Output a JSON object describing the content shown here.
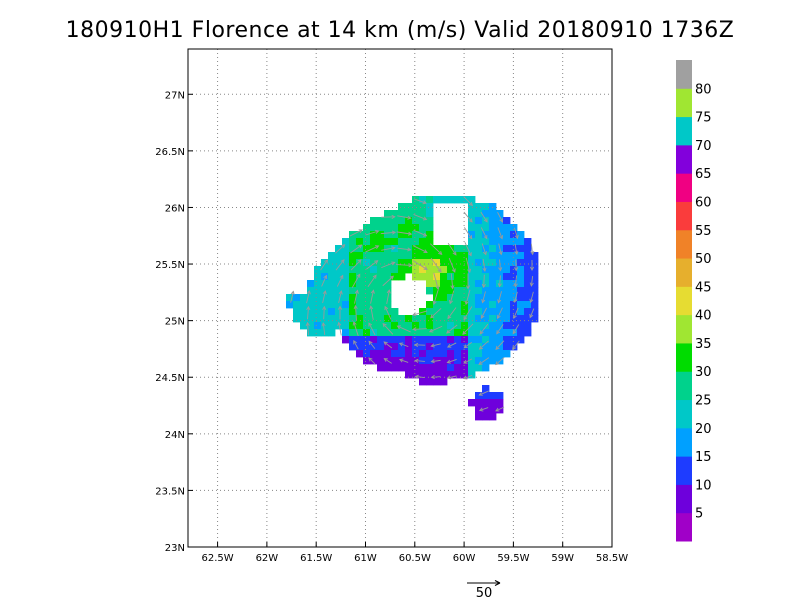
{
  "title": "180910H1 Florence at 14 km (m/s) Valid 20180910 1736Z",
  "map": {
    "lon_range": [
      -62.8,
      -58.5
    ],
    "lat_range": [
      23,
      27.4
    ],
    "x_ticks": [
      {
        "v": -62.5,
        "label": "62.5W"
      },
      {
        "v": -62,
        "label": "62W"
      },
      {
        "v": -61.5,
        "label": "61.5W"
      },
      {
        "v": -61,
        "label": "61W"
      },
      {
        "v": -60.5,
        "label": "60.5W"
      },
      {
        "v": -60,
        "label": "60W"
      },
      {
        "v": -59.5,
        "label": "59.5W"
      },
      {
        "v": -59,
        "label": "59W"
      },
      {
        "v": -58.5,
        "label": "58.5W"
      }
    ],
    "y_ticks": [
      {
        "v": 23,
        "label": "23N"
      },
      {
        "v": 23.5,
        "label": "23.5N"
      },
      {
        "v": 24,
        "label": "24N"
      },
      {
        "v": 24.5,
        "label": "24.5N"
      },
      {
        "v": 25,
        "label": "25N"
      },
      {
        "v": 25.5,
        "label": "25.5N"
      },
      {
        "v": 26,
        "label": "26N"
      },
      {
        "v": 26.5,
        "label": "26.5N"
      },
      {
        "v": 27,
        "label": "27N"
      }
    ],
    "grid": "dotted",
    "storm_center": {
      "lon": -60.55,
      "lat": 25.22
    }
  },
  "colorbar": {
    "labels": [
      "5",
      "10",
      "15",
      "20",
      "25",
      "30",
      "35",
      "40",
      "45",
      "50",
      "55",
      "60",
      "65",
      "70",
      "75",
      "80"
    ],
    "colors": [
      "#a000c8",
      "#6e00dc",
      "#1e3cff",
      "#00a0ff",
      "#00c8c8",
      "#00d28c",
      "#00dc00",
      "#a0e632",
      "#e6dc32",
      "#e6af2d",
      "#f08228",
      "#fa3c3c",
      "#f00082",
      "#8200dc",
      "#00c8c8",
      "#a0e632",
      "#a0a0a0"
    ]
  },
  "reference_vector": {
    "label": "50"
  }
}
